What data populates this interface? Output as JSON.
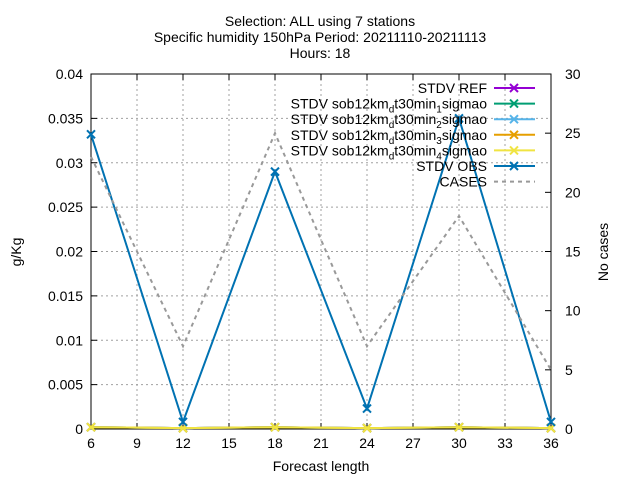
{
  "chart_data": {
    "type": "line",
    "title_lines": [
      "Selection: ALL using     7 stations",
      "Specific humidity 150hPa   Period: 20211110-20211113",
      "Hours: 18"
    ],
    "xlabel": "Forecast length",
    "ylabel": "g/Kg",
    "y2label": "No cases",
    "xlim": [
      6,
      36
    ],
    "ylim": [
      0,
      0.04
    ],
    "y2lim": [
      0,
      30
    ],
    "x_ticks": [
      "6",
      "9",
      "12",
      "15",
      "18",
      "21",
      "24",
      "27",
      "30",
      "33",
      "36"
    ],
    "y_ticks": [
      "0",
      "0.005",
      "0.01",
      "0.015",
      "0.02",
      "0.025",
      "0.03",
      "0.035",
      "0.04"
    ],
    "y2_ticks": [
      "0",
      "5",
      "10",
      "15",
      "20",
      "25",
      "30"
    ],
    "grid": true,
    "legend_position": "top-right",
    "x": [
      6,
      12,
      18,
      24,
      30,
      36
    ],
    "series": [
      {
        "legend": [
          "STDV REF"
        ],
        "color": "#9400d3",
        "marker": "x",
        "axis": "y",
        "dashed": false,
        "values": [
          0.0002,
          0.0001,
          0.0002,
          0.0001,
          0.0002,
          0.0001
        ]
      },
      {
        "legend": [
          "STDV sob12km",
          "d",
          "t30min",
          "1",
          "sigmao"
        ],
        "color": "#009e73",
        "marker": "x",
        "axis": "y",
        "dashed": false,
        "values": [
          0.0002,
          0.0001,
          0.0002,
          0.0001,
          0.0002,
          0.0001
        ]
      },
      {
        "legend": [
          "STDV sob12km",
          "d",
          "t30min",
          "2",
          "sigmao"
        ],
        "color": "#56b4e9",
        "marker": "x",
        "axis": "y",
        "dashed": false,
        "values": [
          0.0002,
          0.0001,
          0.0002,
          0.0001,
          0.0002,
          0.0001
        ]
      },
      {
        "legend": [
          "STDV sob12km",
          "d",
          "t30min",
          "3",
          "sigmao"
        ],
        "color": "#e69f00",
        "marker": "x",
        "axis": "y",
        "dashed": false,
        "values": [
          0.0002,
          0.0001,
          0.0002,
          0.0001,
          0.0002,
          0.0001
        ]
      },
      {
        "legend": [
          "STDV sob12km",
          "d",
          "t30min",
          "4",
          "sigmao"
        ],
        "color": "#f0e442",
        "marker": "x",
        "axis": "y",
        "dashed": false,
        "values": [
          0.0002,
          0.0001,
          0.0002,
          0.0001,
          0.0002,
          0.0001
        ]
      },
      {
        "legend": [
          "STDV OBS"
        ],
        "color": "#0072b2",
        "marker": "x",
        "axis": "y",
        "dashed": false,
        "values": [
          0.0332,
          0.0008,
          0.029,
          0.0023,
          0.035,
          0.0008
        ]
      },
      {
        "legend": [
          "CASES"
        ],
        "color": "#999999",
        "marker": "none",
        "axis": "y2",
        "dashed": true,
        "values": [
          23,
          7,
          25,
          7,
          18,
          5
        ]
      }
    ]
  }
}
